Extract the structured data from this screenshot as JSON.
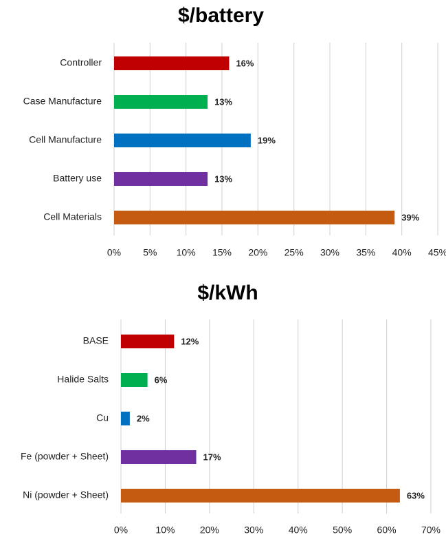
{
  "chart_data": [
    {
      "type": "bar",
      "orientation": "horizontal",
      "title": "$/battery",
      "categories": [
        "Controller",
        "Case Manufacture",
        "Cell Manufacture",
        "Battery use",
        "Cell Materials"
      ],
      "values": [
        16,
        13,
        19,
        13,
        39
      ],
      "value_labels": [
        "16%",
        "13%",
        "19%",
        "13%",
        "39%"
      ],
      "colors": [
        "#c00000",
        "#00b050",
        "#0070c0",
        "#7030a0",
        "#c55a11"
      ],
      "xlim": [
        0,
        45
      ],
      "xticks": [
        {
          "value": 0,
          "label": "0%"
        },
        {
          "value": 5,
          "label": "5%"
        },
        {
          "value": 10,
          "label": "10%"
        },
        {
          "value": 15,
          "label": "15%"
        },
        {
          "value": 20,
          "label": "20%"
        },
        {
          "value": 25,
          "label": "25%"
        },
        {
          "value": 30,
          "label": "30%"
        },
        {
          "value": 35,
          "label": "35%"
        },
        {
          "value": 40,
          "label": "40%"
        },
        {
          "value": 45,
          "label": "45%"
        }
      ],
      "grid": true
    },
    {
      "type": "bar",
      "orientation": "horizontal",
      "title": "$/kWh",
      "categories": [
        "BASE",
        "Halide Salts",
        "Cu",
        "Fe (powder + Sheet)",
        "Ni (powder + Sheet)"
      ],
      "values": [
        12,
        6,
        2,
        17,
        63
      ],
      "value_labels": [
        "12%",
        "6%",
        "2%",
        "17%",
        "63%"
      ],
      "colors": [
        "#c00000",
        "#00b050",
        "#0070c0",
        "#7030a0",
        "#c55a11"
      ],
      "xlim": [
        0,
        70
      ],
      "xticks": [
        {
          "value": 0,
          "label": "0%"
        },
        {
          "value": 10,
          "label": "10%"
        },
        {
          "value": 20,
          "label": "20%"
        },
        {
          "value": 30,
          "label": "30%"
        },
        {
          "value": 40,
          "label": "40%"
        },
        {
          "value": 50,
          "label": "50%"
        },
        {
          "value": 60,
          "label": "60%"
        },
        {
          "value": 70,
          "label": "70%"
        }
      ],
      "grid": true
    }
  ]
}
